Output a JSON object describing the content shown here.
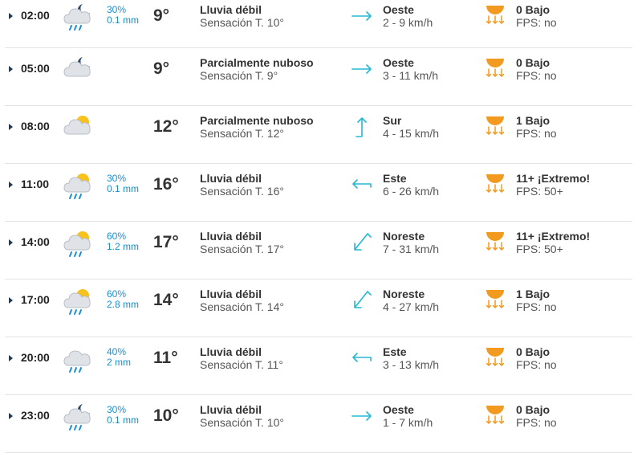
{
  "colors": {
    "precip_text": "#1a8fd0",
    "wind_arrow": "#22b8d6",
    "sun_orange": "#f29a1f",
    "divider": "#e4e4e4"
  },
  "rows": [
    {
      "time": "02:00",
      "icon": "night-rain-icon",
      "precip_prob": "30%",
      "precip_amount": "0.1 mm",
      "temp": "9°",
      "desc": "Lluvia débil",
      "feels": "Sensación T. 10°",
      "wind_icon": "wind-arrow-right-icon",
      "wind_dir": "Oeste",
      "wind_speed": "2 - 9 km/h",
      "uv": "0 Bajo",
      "fps": "FPS: no"
    },
    {
      "time": "05:00",
      "icon": "night-partly-cloudy-icon",
      "precip_prob": "",
      "precip_amount": "",
      "temp": "9°",
      "desc": "Parcialmente nuboso",
      "feels": "Sensación T. 9°",
      "wind_icon": "wind-arrow-right-icon",
      "wind_dir": "Oeste",
      "wind_speed": "3 - 11 km/h",
      "uv": "0 Bajo",
      "fps": "FPS: no"
    },
    {
      "time": "08:00",
      "icon": "day-partly-cloudy-icon",
      "precip_prob": "",
      "precip_amount": "",
      "temp": "12°",
      "desc": "Parcialmente nuboso",
      "feels": "Sensación T. 12°",
      "wind_icon": "wind-arrow-up-icon",
      "wind_dir": "Sur",
      "wind_speed": "4 - 15 km/h",
      "uv": "1 Bajo",
      "fps": "FPS: no"
    },
    {
      "time": "11:00",
      "icon": "day-rain-icon",
      "precip_prob": "30%",
      "precip_amount": "0.1 mm",
      "temp": "16°",
      "desc": "Lluvia débil",
      "feels": "Sensación T. 16°",
      "wind_icon": "wind-arrow-left-icon",
      "wind_dir": "Este",
      "wind_speed": "6 - 26 km/h",
      "uv": "11+ ¡Extremo!",
      "fps": "FPS: 50+"
    },
    {
      "time": "14:00",
      "icon": "day-rain-icon",
      "precip_prob": "60%",
      "precip_amount": "1.2 mm",
      "temp": "17°",
      "desc": "Lluvia débil",
      "feels": "Sensación T. 17°",
      "wind_icon": "wind-arrow-down-left-icon",
      "wind_dir": "Noreste",
      "wind_speed": "7 - 31 km/h",
      "uv": "11+ ¡Extremo!",
      "fps": "FPS: 50+"
    },
    {
      "time": "17:00",
      "icon": "day-rain-icon",
      "precip_prob": "60%",
      "precip_amount": "2.8 mm",
      "temp": "14°",
      "desc": "Lluvia débil",
      "feels": "Sensación T. 14°",
      "wind_icon": "wind-arrow-down-left-icon",
      "wind_dir": "Noreste",
      "wind_speed": "4 - 27 km/h",
      "uv": "1 Bajo",
      "fps": "FPS: no"
    },
    {
      "time": "20:00",
      "icon": "cloud-rain-icon",
      "precip_prob": "40%",
      "precip_amount": "2 mm",
      "temp": "11°",
      "desc": "Lluvia débil",
      "feels": "Sensación T. 11°",
      "wind_icon": "wind-arrow-left-icon",
      "wind_dir": "Este",
      "wind_speed": "3 - 13 km/h",
      "uv": "0 Bajo",
      "fps": "FPS: no"
    },
    {
      "time": "23:00",
      "icon": "night-rain-icon",
      "precip_prob": "30%",
      "precip_amount": "0.1 mm",
      "temp": "10°",
      "desc": "Lluvia débil",
      "feels": "Sensación T. 10°",
      "wind_icon": "wind-arrow-right-icon",
      "wind_dir": "Oeste",
      "wind_speed": "1 - 7 km/h",
      "uv": "0 Bajo",
      "fps": "FPS: no"
    }
  ]
}
